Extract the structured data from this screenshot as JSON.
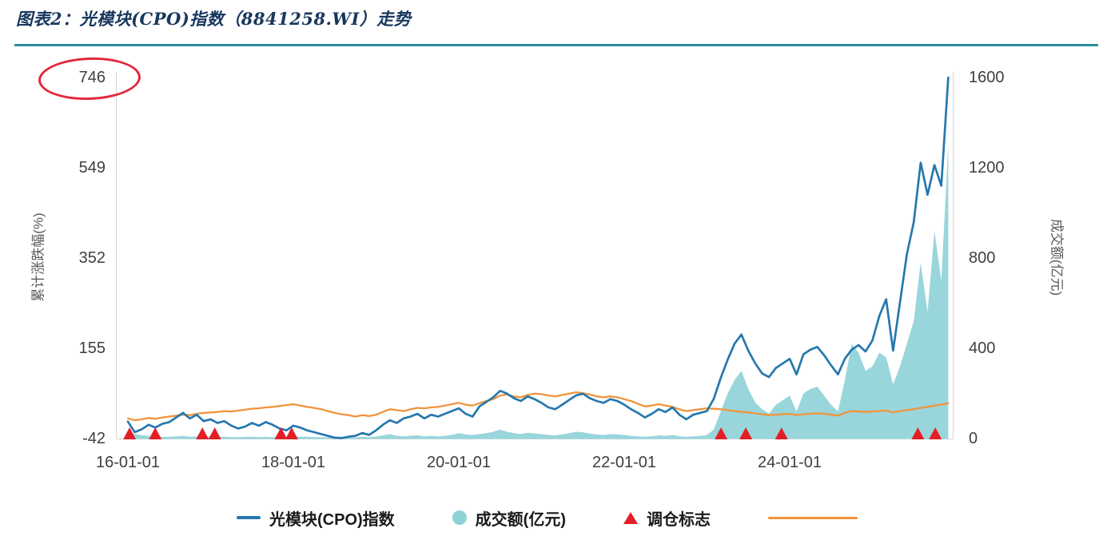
{
  "figure": {
    "title": "图表2：光模块(CPO)指数（8841258.WI）走势"
  },
  "colors": {
    "title": "#17375e",
    "divider": "#2f8fa0"
  },
  "legend": {
    "items": [
      {
        "label": "光模块(CPO)指数"
      },
      {
        "label": "成交额(亿元)"
      },
      {
        "label": "调仓标志"
      },
      {
        "label": ""
      }
    ]
  },
  "chart_data": {
    "type": "combo",
    "title": "图表2：光模块(CPO)指数（8841258.WI）走势",
    "x_unit": "decimal_year",
    "x_start": 2016.0,
    "x_step": 0.0833333,
    "x_ticks": [
      {
        "year": 2016,
        "label": "16-01-01"
      },
      {
        "year": 2018,
        "label": "18-01-01"
      },
      {
        "year": 2020,
        "label": "20-01-01"
      },
      {
        "year": 2022,
        "label": "22-01-01"
      },
      {
        "year": 2024,
        "label": "24-01-01"
      }
    ],
    "left_axis": {
      "label": "累计涨跌幅(%)",
      "ticks": [
        746,
        549,
        352,
        155,
        -42
      ],
      "range": [
        -42,
        746
      ]
    },
    "right_axis": {
      "label": "成交额(亿元)",
      "ticks": [
        1600,
        1200,
        800,
        400,
        0
      ],
      "range": [
        0,
        1600
      ]
    },
    "grid": false,
    "legend_position": "bottom",
    "annotations": [
      {
        "shape": "ellipse",
        "around_text": "746",
        "color": "#e5273b",
        "note": "hand-drawn red ellipse around left-axis max tick"
      }
    ],
    "series": [
      {
        "id": "index",
        "name": "光模块(CPO)指数",
        "type": "line",
        "axis": "left",
        "color": "#2678ae",
        "values": [
          -5,
          -28,
          -22,
          -12,
          -18,
          -10,
          -6,
          4,
          14,
          2,
          10,
          -4,
          0,
          -8,
          -4,
          -14,
          -20,
          -16,
          -8,
          -14,
          -6,
          -12,
          -20,
          -24,
          -14,
          -18,
          -24,
          -28,
          -32,
          -36,
          -40,
          -41,
          -38,
          -36,
          -30,
          -34,
          -24,
          -12,
          -2,
          -8,
          2,
          6,
          12,
          2,
          10,
          6,
          12,
          18,
          24,
          12,
          6,
          28,
          38,
          48,
          62,
          56,
          46,
          40,
          50,
          44,
          36,
          26,
          22,
          32,
          42,
          52,
          56,
          46,
          40,
          36,
          44,
          40,
          32,
          22,
          14,
          4,
          12,
          22,
          16,
          26,
          10,
          0,
          10,
          14,
          18,
          45,
          90,
          130,
          165,
          185,
          150,
          122,
          100,
          92,
          112,
          122,
          132,
          98,
          142,
          152,
          158,
          140,
          118,
          98,
          132,
          152,
          162,
          148,
          172,
          225,
          262,
          150,
          255,
          360,
          430,
          560,
          490,
          555,
          510,
          746
        ]
      },
      {
        "id": "volume",
        "name": "成交额(亿元)",
        "type": "area",
        "axis": "right",
        "color": "#8ed2d8",
        "values": [
          30,
          20,
          15,
          12,
          10,
          8,
          8,
          10,
          12,
          8,
          10,
          8,
          10,
          8,
          8,
          6,
          6,
          8,
          8,
          6,
          8,
          6,
          6,
          8,
          10,
          8,
          8,
          6,
          6,
          5,
          5,
          4,
          4,
          5,
          8,
          6,
          10,
          14,
          20,
          12,
          10,
          12,
          14,
          10,
          12,
          10,
          12,
          16,
          24,
          18,
          16,
          20,
          24,
          30,
          40,
          30,
          24,
          20,
          26,
          22,
          20,
          16,
          14,
          18,
          24,
          30,
          28,
          22,
          18,
          16,
          20,
          18,
          16,
          12,
          10,
          8,
          10,
          14,
          12,
          16,
          10,
          8,
          10,
          12,
          16,
          40,
          120,
          200,
          260,
          300,
          220,
          160,
          130,
          110,
          150,
          170,
          190,
          120,
          200,
          220,
          230,
          190,
          150,
          120,
          260,
          420,
          380,
          300,
          320,
          380,
          360,
          240,
          320,
          420,
          520,
          780,
          560,
          920,
          700,
          1300
        ]
      },
      {
        "id": "rebalance",
        "name": "调仓标志",
        "type": "scatter",
        "marker": "triangle-up",
        "axis": "left",
        "color": "#e41e26",
        "x_years": [
          2016.02,
          2016.33,
          2016.9,
          2017.05,
          2017.85,
          2017.98,
          2023.17,
          2023.47,
          2023.9,
          2025.55,
          2025.76
        ]
      },
      {
        "id": "benchmark",
        "name": "",
        "type": "line",
        "axis": "left",
        "color": "#f0943c",
        "values": [
          2,
          -2,
          0,
          3,
          1,
          4,
          6,
          8,
          10,
          9,
          12,
          14,
          15,
          16,
          18,
          17,
          19,
          21,
          23,
          24,
          26,
          27,
          29,
          31,
          33,
          30,
          27,
          25,
          22,
          18,
          14,
          11,
          9,
          6,
          9,
          7,
          10,
          16,
          22,
          20,
          18,
          22,
          25,
          24,
          26,
          27,
          30,
          33,
          36,
          32,
          30,
          35,
          40,
          44,
          52,
          54,
          50,
          48,
          53,
          56,
          55,
          52,
          50,
          53,
          56,
          59,
          57,
          54,
          50,
          48,
          50,
          48,
          44,
          40,
          34,
          28,
          30,
          33,
          30,
          27,
          22,
          18,
          20,
          22,
          24,
          23,
          22,
          20,
          18,
          16,
          15,
          13,
          11,
          9,
          10,
          11,
          12,
          9,
          11,
          12,
          13,
          12,
          10,
          8,
          14,
          18,
          17,
          16,
          17,
          18,
          19,
          15,
          18,
          20,
          22,
          25,
          27,
          30,
          32,
          35
        ]
      }
    ]
  }
}
